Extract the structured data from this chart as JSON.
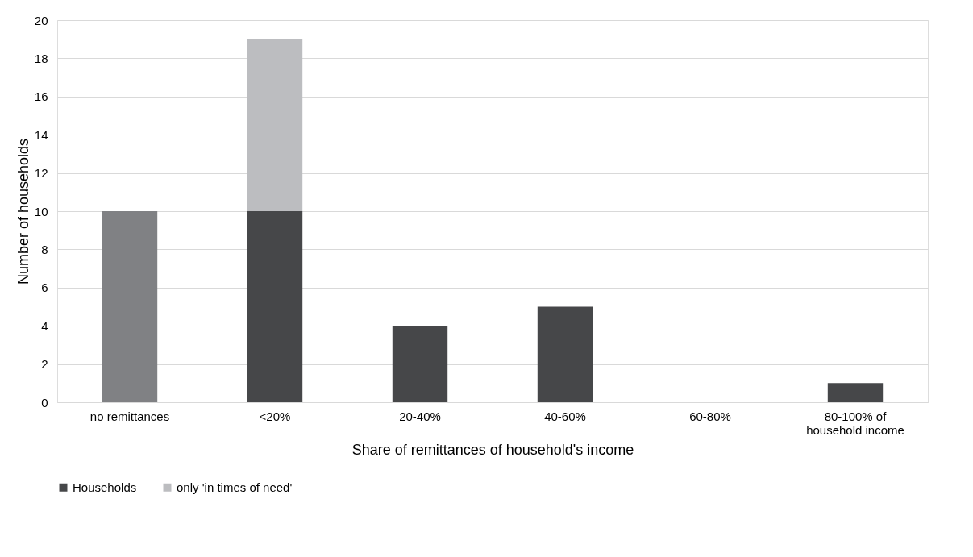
{
  "chart_data": {
    "type": "bar",
    "stacked": true,
    "xlabel": "Share of remittances of household's income",
    "ylabel": "Number of households",
    "categories": [
      "no remittances",
      "<20%",
      "20-40%",
      "40-60%",
      "60-80%",
      "80-100% of household income"
    ],
    "series": [
      {
        "color": "#808184",
        "values": [
          10,
          null,
          null,
          null,
          null,
          null
        ]
      },
      {
        "name": "Households",
        "color": "#464749",
        "values": [
          null,
          10,
          4,
          5,
          0,
          1
        ]
      },
      {
        "name": "only 'in times of need'",
        "color": "#bcbdc0",
        "values": [
          null,
          9,
          null,
          null,
          null,
          null
        ]
      }
    ],
    "ylim": [
      0,
      20
    ],
    "yticks": [
      0,
      2,
      4,
      6,
      8,
      10,
      12,
      14,
      16,
      18,
      20
    ],
    "grid": "y",
    "legend": "bottom"
  }
}
